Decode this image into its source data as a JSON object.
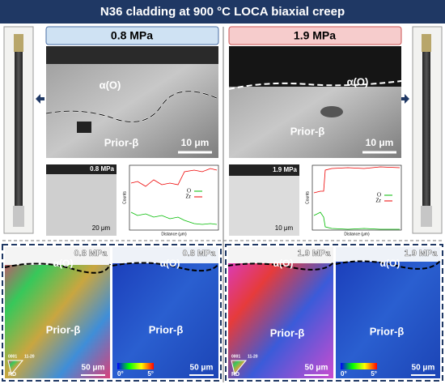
{
  "title": "N36 cladding at 900 °C LOCA biaxial creep",
  "panels": [
    {
      "label": "0.8 MPa",
      "sem": {
        "oxide_label": "α(O)",
        "matrix_label": "Prior-β",
        "scale_bar": "10 μm"
      },
      "eds": {
        "inset_label": "0.8 MPa",
        "scale_bar": "20 μm",
        "x_axis": "Distance (μm)",
        "y_axis": "Counts",
        "legend": [
          "O",
          "Zr"
        ]
      },
      "ebsd": {
        "label": "0.8 MPa",
        "oxide_label": "α(O)",
        "matrix_label": "Prior-β",
        "scale_bar": "50 μm",
        "key": "RD",
        "key_corner": "0001",
        "key_right": "11-20"
      },
      "kam": {
        "label": "0.8 MPa",
        "oxide_label": "α(O)",
        "matrix_label": "Prior-β",
        "scale_bar": "50 μm",
        "min": "0°",
        "max": "5°"
      }
    },
    {
      "label": "1.9 MPa",
      "sem": {
        "oxide_label": "α(O)",
        "matrix_label": "Prior-β",
        "scale_bar": "10 μm"
      },
      "eds": {
        "inset_label": "1.9 MPa",
        "scale_bar": "10 μm",
        "x_axis": "Distance (μm)",
        "y_axis": "Counts",
        "legend": [
          "O",
          "Zr"
        ]
      },
      "ebsd": {
        "label": "1.9 MPa",
        "oxide_label": "α(O)",
        "matrix_label": "Prior-β",
        "scale_bar": "50 μm",
        "key": "RD",
        "key_corner": "0001",
        "key_right": "11-20"
      },
      "kam": {
        "label": "1.9 MPa",
        "oxide_label": "α(O)",
        "matrix_label": "Prior-β",
        "scale_bar": "50 μm",
        "min": "0°",
        "max": "5°"
      }
    }
  ]
}
